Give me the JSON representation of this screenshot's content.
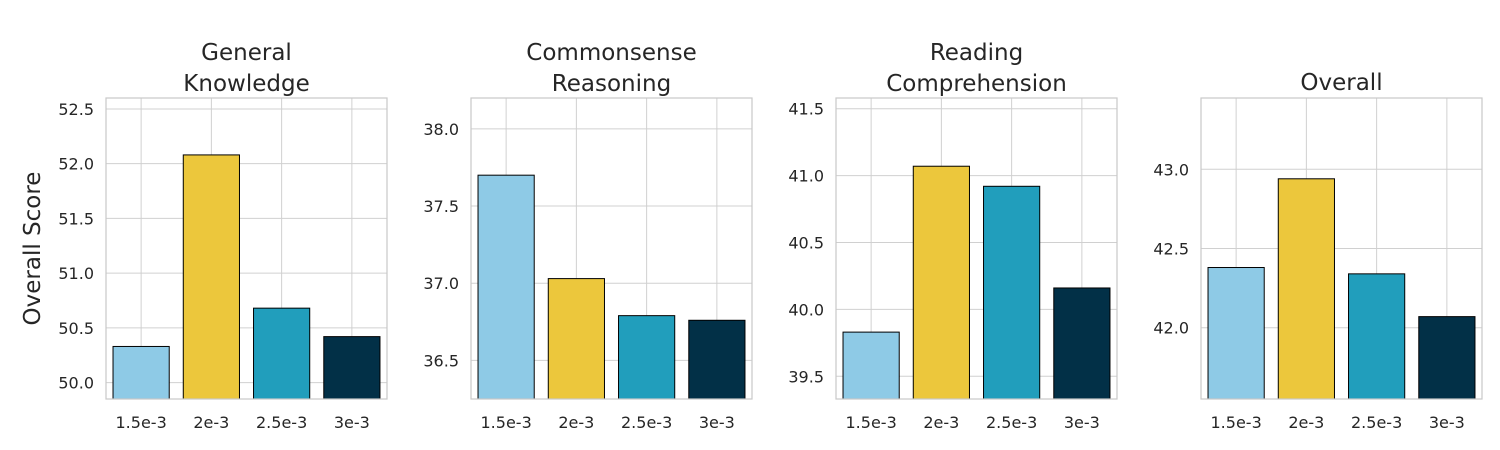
{
  "chart_data": [
    {
      "type": "bar",
      "title_lines": [
        "General",
        "Knowledge"
      ],
      "ylabel": "Overall Score",
      "categories": [
        "1.5e-3",
        "2e-3",
        "2.5e-3",
        "3e-3"
      ],
      "values": [
        50.33,
        52.08,
        50.68,
        50.42
      ],
      "ylim": [
        49.85,
        52.6
      ],
      "yticks": [
        50.0,
        50.5,
        51.0,
        51.5,
        52.0,
        52.5
      ],
      "ytick_labels": [
        "50.0",
        "50.5",
        "51.0",
        "51.5",
        "52.0",
        "52.5"
      ],
      "colors": [
        "#8ecae6",
        "#ecc73c",
        "#219ebc",
        "#023047"
      ],
      "grid": true
    },
    {
      "type": "bar",
      "title_lines": [
        "Commonsense",
        "Reasoning"
      ],
      "ylabel": "",
      "categories": [
        "1.5e-3",
        "2e-3",
        "2.5e-3",
        "3e-3"
      ],
      "values": [
        37.7,
        37.03,
        36.79,
        36.76
      ],
      "ylim": [
        36.25,
        38.2
      ],
      "yticks": [
        36.5,
        37.0,
        37.5,
        38.0
      ],
      "ytick_labels": [
        "36.5",
        "37.0",
        "37.5",
        "38.0"
      ],
      "colors": [
        "#8ecae6",
        "#ecc73c",
        "#219ebc",
        "#023047"
      ],
      "grid": true
    },
    {
      "type": "bar",
      "title_lines": [
        "Reading",
        "Comprehension"
      ],
      "ylabel": "",
      "categories": [
        "1.5e-3",
        "2e-3",
        "2.5e-3",
        "3e-3"
      ],
      "values": [
        39.83,
        41.07,
        40.92,
        40.16
      ],
      "ylim": [
        39.33,
        41.58
      ],
      "yticks": [
        39.5,
        40.0,
        40.5,
        41.0,
        41.5
      ],
      "ytick_labels": [
        "39.5",
        "40.0",
        "40.5",
        "41.0",
        "41.5"
      ],
      "colors": [
        "#8ecae6",
        "#ecc73c",
        "#219ebc",
        "#023047"
      ],
      "grid": true
    },
    {
      "type": "bar",
      "title_lines": [
        "Overall"
      ],
      "ylabel": "",
      "categories": [
        "1.5e-3",
        "2e-3",
        "2.5e-3",
        "3e-3"
      ],
      "values": [
        42.38,
        42.94,
        42.34,
        42.07
      ],
      "ylim": [
        41.55,
        43.45
      ],
      "yticks": [
        42.0,
        42.5,
        43.0
      ],
      "ytick_labels": [
        "42.0",
        "42.5",
        "43.0"
      ],
      "colors": [
        "#8ecae6",
        "#ecc73c",
        "#219ebc",
        "#023047"
      ],
      "grid": true
    }
  ]
}
